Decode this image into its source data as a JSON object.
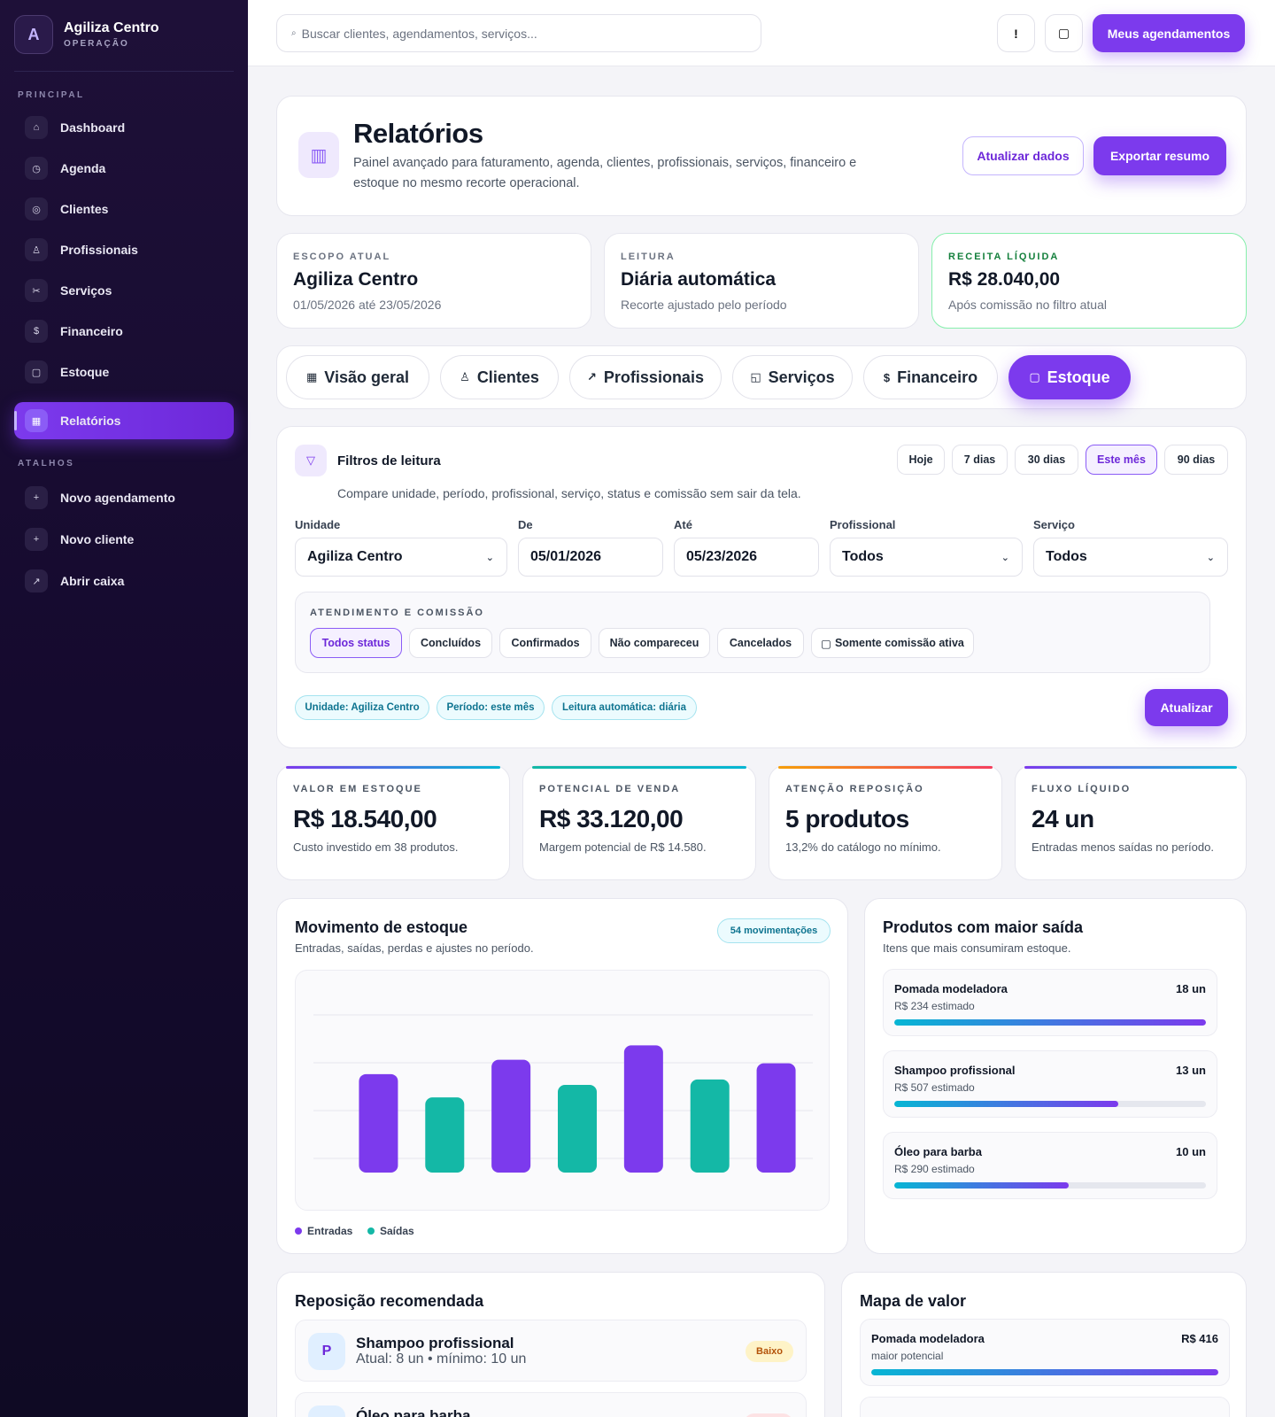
{
  "sidebar": {
    "brand": {
      "initial": "A",
      "name": "Agiliza Centro",
      "subtitle": "OPERAÇÃO"
    },
    "section_principal": "PRINCIPAL",
    "section_atalhos": "ATALHOS",
    "items": [
      {
        "icon": "⌂",
        "icon_name": "home-icon",
        "label": "Dashboard"
      },
      {
        "icon": "◷",
        "icon_name": "clock-icon",
        "label": "Agenda"
      },
      {
        "icon": "◎",
        "icon_name": "users-icon",
        "label": "Clientes"
      },
      {
        "icon": "♙",
        "icon_name": "person-icon",
        "label": "Profissionais"
      },
      {
        "icon": "✂",
        "icon_name": "scissors-icon",
        "label": "Serviços"
      },
      {
        "icon": "$",
        "icon_name": "dollar-icon",
        "label": "Financeiro"
      },
      {
        "icon": "▢",
        "icon_name": "box-icon",
        "label": "Estoque"
      },
      {
        "icon": "▦",
        "icon_name": "report-icon",
        "label": "Relatórios"
      }
    ],
    "shortcuts": [
      {
        "icon": "+",
        "icon_name": "plus-icon",
        "label": "Novo agendamento"
      },
      {
        "icon": "+",
        "icon_name": "plus-icon",
        "label": "Novo cliente"
      },
      {
        "icon": "↗",
        "icon_name": "arrow-up-right-icon",
        "label": "Abrir caixa"
      }
    ]
  },
  "topbar": {
    "search_icon": "⌕",
    "search_placeholder": "Buscar clientes, agendamentos, serviços...",
    "alert_icon": "!",
    "square_icon": "▢",
    "primary_label": "Meus agendamentos"
  },
  "header": {
    "icon": "▥",
    "title": "Relatórios",
    "description": "Painel avançado para faturamento, agenda, clientes, profissionais, serviços, financeiro e estoque no mesmo recorte operacional.",
    "refresh_label": "Atualizar dados",
    "export_label": "Exportar resumo"
  },
  "info_cards": [
    {
      "eyebrow": "ESCOPO ATUAL",
      "value": "Agiliza Centro",
      "sub": "01/05/2026 até 23/05/2026"
    },
    {
      "eyebrow": "LEITURA",
      "value": "Diária automática",
      "sub": "Recorte ajustado pelo período"
    },
    {
      "eyebrow": "RECEITA LÍQUIDA",
      "value": "R$ 28.040,00",
      "sub": "Após comissão no filtro atual"
    }
  ],
  "tabs": [
    {
      "icon": "▦",
      "icon_name": "grid-icon",
      "label": "Visão geral"
    },
    {
      "icon": "♙",
      "icon_name": "person-icon",
      "label": "Clientes"
    },
    {
      "icon": "↗",
      "icon_name": "arrow-up-right-icon",
      "label": "Profissionais"
    },
    {
      "icon": "◱",
      "icon_name": "service-icon",
      "label": "Serviços"
    },
    {
      "icon": "$",
      "icon_name": "dollar-icon",
      "label": "Financeiro"
    },
    {
      "icon": "▢",
      "icon_name": "box-icon",
      "label": "Estoque"
    }
  ],
  "filters": {
    "icon": "▽",
    "title": "Filtros de leitura",
    "description": "Compare unidade, período, profissional, serviço, status e comissão sem sair da tela.",
    "presets": [
      "Hoje",
      "7 dias",
      "30 dias",
      "Este mês",
      "90 dias"
    ],
    "active_preset": "Este mês",
    "fields": {
      "unidade": {
        "label": "Unidade",
        "value": "Agiliza Centro"
      },
      "de": {
        "label": "De",
        "value": "05/01/2026"
      },
      "ate": {
        "label": "Até",
        "value": "05/23/2026"
      },
      "profissional": {
        "label": "Profissional",
        "value": "Todos"
      },
      "servico": {
        "label": "Serviço",
        "value": "Todos"
      }
    },
    "chevron": "⌄",
    "attendance": {
      "title": "ATENDIMENTO E COMISSÃO",
      "statuses": [
        "Todos status",
        "Concluídos",
        "Confirmados",
        "Não compareceu",
        "Cancelados"
      ],
      "commission_checkbox": "▢",
      "commission_label": "Somente comissão ativa"
    },
    "pills": [
      "Unidade: Agiliza Centro",
      "Período: este mês",
      "Leitura automática: diária"
    ],
    "update_label": "Atualizar"
  },
  "kpis": [
    {
      "eyebrow": "VALOR EM ESTOQUE",
      "value": "R$ 18.540,00",
      "sub": "Custo investido em 38 produtos.",
      "accent": "#7c3aed"
    },
    {
      "eyebrow": "POTENCIAL DE VENDA",
      "value": "R$ 33.120,00",
      "sub": "Margem potencial de R$ 14.580.",
      "accent": "#14b8a6"
    },
    {
      "eyebrow": "ATENÇÃO REPOSIÇÃO",
      "value": "5 produtos",
      "sub": "13,2% do catálogo no mínimo.",
      "accent": "#f97316"
    },
    {
      "eyebrow": "FLUXO LÍQUIDO",
      "value": "24 un",
      "sub": "Entradas menos saídas no período.",
      "accent": "#06b6d4"
    }
  ],
  "movement": {
    "title": "Movimento de estoque",
    "subtitle": "Entradas, saídas, perdas e ajustes no período.",
    "badge": "54 movimentações"
  },
  "chart_data": {
    "type": "bar",
    "series": [
      {
        "name": "Entradas",
        "color": "#7c3aed",
        "values": [
          23.5,
          27.5,
          31.5,
          26.5
        ]
      },
      {
        "name": "Saídas",
        "color": "#14b8a6",
        "values": [
          17,
          20.5,
          22
        ]
      }
    ],
    "order": [
      "Entradas",
      "Saídas",
      "Entradas",
      "Saídas",
      "Entradas",
      "Saídas",
      "Entradas"
    ],
    "ylim": [
      0,
      40
    ],
    "grid": true,
    "legend": "bottom-left"
  },
  "top_products": {
    "title": "Produtos com maior saída",
    "subtitle": "Itens que mais consumiram estoque.",
    "items": [
      {
        "name": "Pomada modeladora",
        "qty": "18 un",
        "estimate": "R$ 234 estimado",
        "ratio": 1.0
      },
      {
        "name": "Shampoo profissional",
        "qty": "13 un",
        "estimate": "R$ 507 estimado",
        "ratio": 0.72
      },
      {
        "name": "Óleo para barba",
        "qty": "10 un",
        "estimate": "R$ 290 estimado",
        "ratio": 0.56
      }
    ]
  },
  "restock": {
    "title": "Reposição recomendada",
    "items": [
      {
        "initial": "P",
        "name": "Shampoo profissional",
        "info": "Atual: 8 un • mínimo: 10 un",
        "badge": "Baixo",
        "badge_color": "#fef3c7",
        "badge_text": "#b45309"
      },
      {
        "initial": "",
        "name": "Óleo para barba",
        "info": "",
        "badge": "",
        "badge_color": "#fde2e4",
        "badge_text": "#be123c"
      }
    ]
  },
  "value_map": {
    "title": "Mapa de valor",
    "items": [
      {
        "name": "Pomada modeladora",
        "value": "R$ 416",
        "note": "maior potencial",
        "ratio": 1.0
      }
    ]
  }
}
